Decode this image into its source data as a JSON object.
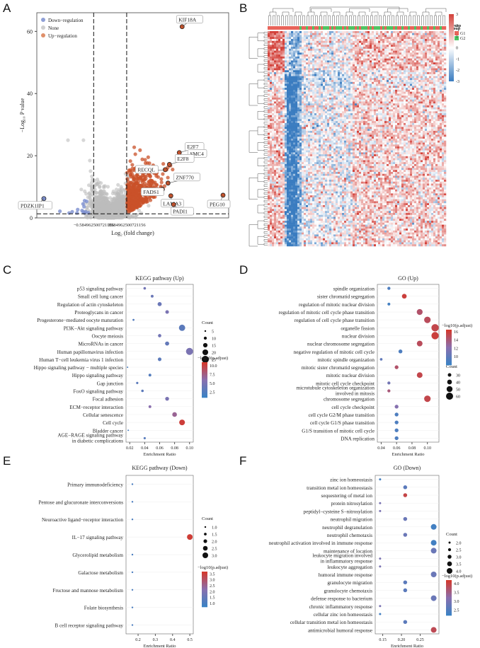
{
  "panels": {
    "A": "A",
    "B": "B",
    "C": "C",
    "D": "D",
    "E": "E",
    "F": "F"
  },
  "chart_data": [
    {
      "id": "A",
      "type": "scatter",
      "subtype": "volcano",
      "xlabel": "Log₂ (fold change)",
      "ylabel": "−Log₁₀ P value",
      "xlim": [
        -2.6,
        4.2
      ],
      "ylim": [
        0,
        66
      ],
      "yticks": [
        0,
        20,
        40,
        60
      ],
      "xticks": [
        -2,
        0,
        2
      ],
      "threshold_lines": {
        "x_left_label": "−0.584962500721156",
        "x_right_label": "0.584962500721156",
        "x": [
          -0.585,
          0.585
        ],
        "y": 1.3
      },
      "legend": [
        {
          "name": "Down−regulation",
          "color": "#8f9fd6"
        },
        {
          "name": "None",
          "color": "#cfcfcf"
        },
        {
          "name": "Up−regulation",
          "color": "#e0906a"
        }
      ],
      "colors": {
        "down": "#7c8fd0",
        "none": "#bdbdbd",
        "up": "#c9522a"
      },
      "labeled_genes": [
        {
          "gene": "KIF18A",
          "x": 2.55,
          "y": 61.5
        },
        {
          "gene": "E2F7",
          "x": 2.45,
          "y": 21.0
        },
        {
          "gene": "SMC4",
          "x": 2.55,
          "y": 18.8
        },
        {
          "gene": "E2F8",
          "x": 2.1,
          "y": 17.2
        },
        {
          "gene": "RECQL",
          "x": 1.95,
          "y": 15.5
        },
        {
          "gene": "ZNF770",
          "x": 2.05,
          "y": 11.2
        },
        {
          "gene": "FADS1",
          "x": 1.85,
          "y": 9.2
        },
        {
          "gene": "LAMA3",
          "x": 2.15,
          "y": 7.1
        },
        {
          "gene": "PADI1",
          "x": 2.25,
          "y": 4.3
        },
        {
          "gene": "PEG10",
          "x": 4.0,
          "y": 7.3
        },
        {
          "gene": "PDZK1IP1",
          "x": -2.35,
          "y": 6.2
        }
      ]
    },
    {
      "id": "B",
      "type": "heatmap",
      "legend_title": "group",
      "groups": [
        {
          "name": "G1",
          "color": "#e9645a"
        },
        {
          "name": "G2",
          "color": "#4fc463"
        }
      ],
      "color_scale": {
        "min": -3,
        "max": 3,
        "ticks": [
          3,
          2,
          1,
          0,
          -1,
          -2,
          -3
        ],
        "low": "#3a7cc0",
        "mid": "#ffffff",
        "high": "#d3413a"
      }
    },
    {
      "id": "C",
      "type": "scatter",
      "subtype": "dotplot",
      "title": "KEGG pathway (Up)",
      "xlabel": "Enrichment Ratio",
      "xlim": [
        0.015,
        0.105
      ],
      "xticks": [
        0.02,
        0.04,
        0.06,
        0.08,
        0.1
      ],
      "xtick_labels": [
        "0.02",
        "0.04",
        "0.06",
        "0.08",
        "0.10"
      ],
      "size_legend": {
        "title": "Count",
        "values": [
          5,
          10,
          15,
          20,
          25
        ],
        "labels": [
          "5",
          "10",
          "15",
          "20",
          "25"
        ]
      },
      "color_legend": {
        "title": "−log10(p.adjust)",
        "min": 1.0,
        "max": 11.0,
        "ticks": [
          10.0,
          7.5,
          5.0,
          2.5
        ],
        "labels": [
          "10.0",
          "7.5",
          "5.0",
          "2.5"
        ]
      },
      "terms": [
        {
          "name": "p53 signaling pathway",
          "x": 0.04,
          "count": 8,
          "logp": 4.5
        },
        {
          "name": "Small cell lung cancer",
          "x": 0.05,
          "count": 9,
          "logp": 4.0
        },
        {
          "name": "Regulation of actin cytoskeleton",
          "x": 0.06,
          "count": 14,
          "logp": 4.0
        },
        {
          "name": "Proteoglycans in cancer",
          "x": 0.07,
          "count": 12,
          "logp": 5.0
        },
        {
          "name": "Progesterone−mediated oocyte maturation",
          "x": 0.025,
          "count": 6,
          "logp": 2.5
        },
        {
          "name": "PI3K−Akt signaling pathway",
          "x": 0.09,
          "count": 22,
          "logp": 3.0
        },
        {
          "name": "Oocyte meiosis",
          "x": 0.06,
          "count": 11,
          "logp": 4.5
        },
        {
          "name": "MicroRNAs in cancer",
          "x": 0.07,
          "count": 14,
          "logp": 3.5
        },
        {
          "name": "Human papillomavirus infection",
          "x": 0.1,
          "count": 25,
          "logp": 5.0
        },
        {
          "name": "Human T−cell leukemia virus 1 infection",
          "x": 0.06,
          "count": 12,
          "logp": 3.0
        },
        {
          "name": "Hippo signaling pathway − multiple species",
          "x": 0.017,
          "count": 4,
          "logp": 2.0
        },
        {
          "name": "Hippo signaling pathway",
          "x": 0.047,
          "count": 9,
          "logp": 2.5
        },
        {
          "name": "Gap junction",
          "x": 0.03,
          "count": 7,
          "logp": 3.0
        },
        {
          "name": "FoxO signaling pathway",
          "x": 0.037,
          "count": 8,
          "logp": 3.0
        },
        {
          "name": "Focal adhesion",
          "x": 0.07,
          "count": 13,
          "logp": 5.0
        },
        {
          "name": "ECM−receptor interaction",
          "x": 0.047,
          "count": 9,
          "logp": 6.0
        },
        {
          "name": "Cellular senescence",
          "x": 0.08,
          "count": 16,
          "logp": 7.0
        },
        {
          "name": "Cell cycle",
          "x": 0.09,
          "count": 20,
          "logp": 10.5
        },
        {
          "name": "Bladder cancer",
          "x": 0.018,
          "count": 4,
          "logp": 2.0
        },
        {
          "name": "AGE−RAGE signaling pathway in diabetic complications",
          "label_lines": [
            "AGE−RAGE signaling pathway",
            "in diabetic complications"
          ],
          "x": 0.04,
          "count": 7,
          "logp": 2.8
        }
      ]
    },
    {
      "id": "D",
      "type": "scatter",
      "subtype": "dotplot",
      "title": "GO (Up)",
      "xlabel": "Enrichment Ratio",
      "xlim": [
        0.035,
        0.115
      ],
      "xticks": [
        0.04,
        0.06,
        0.08,
        0.1
      ],
      "xtick_labels": [
        "0.04",
        "0.06",
        "0.08",
        "0.10"
      ],
      "size_legend": {
        "title": "Count",
        "values": [
          30,
          40,
          50,
          60
        ],
        "labels": [
          "30",
          "40",
          "50",
          "60"
        ]
      },
      "color_legend": {
        "title": "−log10(p.adjust)",
        "min": 8.0,
        "max": 16.5,
        "ticks": [
          16,
          14,
          12,
          10
        ],
        "labels": [
          "16",
          "14",
          "12",
          "10"
        ]
      },
      "terms": [
        {
          "name": "spindle organization",
          "x": 0.05,
          "count": 26,
          "logp": 9.0
        },
        {
          "name": "sister chromatid segregation",
          "x": 0.07,
          "count": 40,
          "logp": 16.0
        },
        {
          "name": "regulation of mitotic nuclear division",
          "x": 0.05,
          "count": 24,
          "logp": 8.5
        },
        {
          "name": "regulation of mitotic cell cycle phase transition",
          "x": 0.09,
          "count": 50,
          "logp": 14.5
        },
        {
          "name": "regulation of cell cycle phase transition",
          "x": 0.1,
          "count": 55,
          "logp": 15.0
        },
        {
          "name": "organelle fission",
          "x": 0.11,
          "count": 62,
          "logp": 15.5
        },
        {
          "name": "nuclear division",
          "x": 0.11,
          "count": 62,
          "logp": 16.0
        },
        {
          "name": "nuclear chromosome segregation",
          "x": 0.09,
          "count": 48,
          "logp": 15.0
        },
        {
          "name": "negative regulation of mitotic cell cycle",
          "x": 0.065,
          "count": 33,
          "logp": 9.0
        },
        {
          "name": "mitotic spindle organization",
          "x": 0.04,
          "count": 22,
          "logp": 10.0
        },
        {
          "name": "mitotic sister chromatid segregation",
          "x": 0.06,
          "count": 32,
          "logp": 14.5
        },
        {
          "name": "mitotic nuclear division",
          "x": 0.09,
          "count": 48,
          "logp": 15.5
        },
        {
          "name": "mitotic cell cycle checkpoint",
          "x": 0.05,
          "count": 26,
          "logp": 11.0
        },
        {
          "name": "microtubule cytoskeleton organization involved in mitosis",
          "label_lines": [
            "microtubule cytoskeleton organization",
            "involved in mitosis"
          ],
          "x": 0.05,
          "count": 26,
          "logp": 14.0
        },
        {
          "name": "chromosome segregation",
          "x": 0.1,
          "count": 55,
          "logp": 15.5
        },
        {
          "name": "cell cycle checkpoint",
          "x": 0.06,
          "count": 32,
          "logp": 12.0
        },
        {
          "name": "cell cycle G2/M phase transition",
          "x": 0.06,
          "count": 32,
          "logp": 9.0
        },
        {
          "name": "cell cycle G1/S phase transition",
          "x": 0.06,
          "count": 32,
          "logp": 9.0
        },
        {
          "name": "G1/S transition of mitotic cell cycle",
          "x": 0.06,
          "count": 32,
          "logp": 9.0
        },
        {
          "name": "DNA replication",
          "x": 0.06,
          "count": 32,
          "logp": 9.0
        }
      ]
    },
    {
      "id": "E",
      "type": "scatter",
      "subtype": "dotplot",
      "title": "KEGG pathway (Down)",
      "xlabel": "Enrichment Ratio",
      "xlim": [
        0.13,
        0.52
      ],
      "xticks": [
        0.2,
        0.3,
        0.4,
        0.5
      ],
      "xtick_labels": [
        "0.2",
        "0.3",
        "0.4",
        "0.5"
      ],
      "size_legend": {
        "title": "Count",
        "values": [
          1.0,
          1.5,
          2.0,
          2.5,
          3.0
        ],
        "labels": [
          "1.0",
          "1.5",
          "2.0",
          "2.5",
          "3.0"
        ]
      },
      "color_legend": {
        "title": "−log10(p.adjust)",
        "min": 0.7,
        "max": 3.7,
        "ticks": [
          3.5,
          3.0,
          2.5,
          2.0,
          1.5,
          1.0
        ],
        "labels": [
          "3.5",
          "3.0",
          "2.5",
          "2.0",
          "1.5",
          "1.0"
        ]
      },
      "terms": [
        {
          "name": "Primary immunodeficiency",
          "x": 0.167,
          "count": 1,
          "logp": 1.0
        },
        {
          "name": "Pentose and glucuronate interconversions",
          "x": 0.167,
          "count": 1,
          "logp": 1.0
        },
        {
          "name": "Neuroactive ligand−receptor interaction",
          "x": 0.167,
          "count": 1,
          "logp": 1.0
        },
        {
          "name": "IL−17 signaling pathway",
          "x": 0.5,
          "count": 3,
          "logp": 3.6
        },
        {
          "name": "Glycerolipid metabolism",
          "x": 0.167,
          "count": 1,
          "logp": 1.0
        },
        {
          "name": "Galactose metabolism",
          "x": 0.167,
          "count": 1,
          "logp": 1.0
        },
        {
          "name": "Fructose and mannose metabolism",
          "x": 0.167,
          "count": 1,
          "logp": 1.0
        },
        {
          "name": "Folate biosynthesis",
          "x": 0.167,
          "count": 1,
          "logp": 1.0
        },
        {
          "name": "B cell receptor signaling pathway",
          "x": 0.167,
          "count": 1,
          "logp": 1.0
        }
      ]
    },
    {
      "id": "F",
      "type": "scatter",
      "subtype": "dotplot",
      "title": "GO (Down)",
      "xlabel": "Enrichment Ratio",
      "xlim": [
        0.13,
        0.3
      ],
      "xticks": [
        0.15,
        0.2,
        0.25
      ],
      "xtick_labels": [
        "0.15",
        "0.20",
        "0.25"
      ],
      "size_legend": {
        "title": "Count",
        "values": [
          2.0,
          2.5,
          3.0,
          3.5,
          4.0
        ],
        "labels": [
          "2.0",
          "2.5",
          "3.0",
          "3.5",
          "4.0"
        ]
      },
      "color_legend": {
        "title": "−log10(p.adjust)",
        "min": 2.2,
        "max": 4.2,
        "ticks": [
          4.0,
          3.5,
          3.0,
          2.5
        ],
        "labels": [
          "4.0",
          "3.5",
          "3.0",
          "2.5"
        ]
      },
      "terms": [
        {
          "name": "zinc ion homeostasis",
          "x": 0.143,
          "count": 2,
          "logp": 2.3
        },
        {
          "name": "transition metal ion homeostasis",
          "x": 0.21,
          "count": 3,
          "logp": 2.6
        },
        {
          "name": "sequestering of metal ion",
          "x": 0.21,
          "count": 3,
          "logp": 4.0
        },
        {
          "name": "protein nitrosylation",
          "x": 0.143,
          "count": 2,
          "logp": 3.0
        },
        {
          "name": "peptidyl−cysteine S−nitrosylation",
          "x": 0.143,
          "count": 2,
          "logp": 3.0
        },
        {
          "name": "neutrophil migration",
          "x": 0.21,
          "count": 3,
          "logp": 2.8
        },
        {
          "name": "neutrophil degranulation",
          "x": 0.286,
          "count": 4,
          "logp": 2.3
        },
        {
          "name": "neutrophil chemotaxis",
          "x": 0.21,
          "count": 3,
          "logp": 2.8
        },
        {
          "name": "neutrophil activation involved in immune response",
          "x": 0.286,
          "count": 4,
          "logp": 2.3
        },
        {
          "name": "maintenance of location",
          "x": 0.286,
          "count": 4,
          "logp": 2.8
        },
        {
          "name": "leukocyte migration involved in inflammatory response",
          "label_lines": [
            "leukocyte migration involved",
            "in inflammatory response"
          ],
          "x": 0.143,
          "count": 2,
          "logp": 3.0
        },
        {
          "name": "leukocyte aggregation",
          "x": 0.143,
          "count": 2,
          "logp": 3.0
        },
        {
          "name": "humoral immune response",
          "x": 0.286,
          "count": 4,
          "logp": 2.8
        },
        {
          "name": "granulocyte migration",
          "x": 0.21,
          "count": 3,
          "logp": 2.6
        },
        {
          "name": "granulocyte chemotaxis",
          "x": 0.21,
          "count": 3,
          "logp": 2.6
        },
        {
          "name": "defense response to bacterium",
          "x": 0.286,
          "count": 4,
          "logp": 2.8
        },
        {
          "name": "chronic inflammatory response",
          "x": 0.143,
          "count": 2,
          "logp": 3.0
        },
        {
          "name": "cellular zinc ion homeostasis",
          "x": 0.143,
          "count": 2,
          "logp": 2.3
        },
        {
          "name": "cellular transition metal ion homeostasis",
          "x": 0.21,
          "count": 3,
          "logp": 2.6
        },
        {
          "name": "antimicrobial humoral response",
          "x": 0.286,
          "count": 4,
          "logp": 3.9
        }
      ]
    }
  ]
}
